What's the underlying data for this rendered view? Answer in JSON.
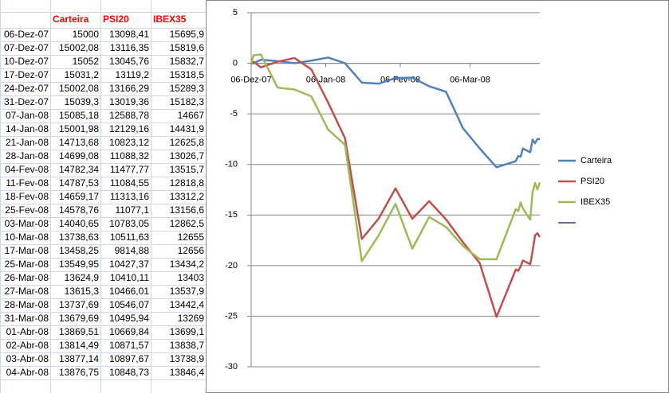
{
  "table": {
    "headers": [
      "Carteira",
      "PSI20",
      "IBEX35"
    ],
    "rows": [
      [
        "06-Dez-07",
        "15000",
        "13098,41",
        "15695,9"
      ],
      [
        "07-Dez-07",
        "15002,08",
        "13116,35",
        "15819,6"
      ],
      [
        "10-Dez-07",
        "15052",
        "13045,76",
        "15832,7"
      ],
      [
        "17-Dez-07",
        "15031,2",
        "13119,2",
        "15318,5"
      ],
      [
        "24-Dez-07",
        "15002,08",
        "13166,29",
        "15289,3"
      ],
      [
        "31-Dez-07",
        "15039,3",
        "13019,36",
        "15182,3"
      ],
      [
        "07-Jan-08",
        "15085,18",
        "12588,78",
        "14667"
      ],
      [
        "14-Jan-08",
        "15001,98",
        "12129,16",
        "14431,9"
      ],
      [
        "21-Jan-08",
        "14713,68",
        "10823,12",
        "12625,8"
      ],
      [
        "28-Jan-08",
        "14699,08",
        "11088,32",
        "13026,7"
      ],
      [
        "04-Fev-08",
        "14782,34",
        "11477,77",
        "13515,7"
      ],
      [
        "11-Fev-08",
        "14787,53",
        "11084,55",
        "12818,8"
      ],
      [
        "18-Fev-08",
        "14659,17",
        "11313,16",
        "13312,2"
      ],
      [
        "25-Fev-08",
        "14578,76",
        "11077,1",
        "13156,6"
      ],
      [
        "03-Mar-08",
        "14040,65",
        "10783,05",
        "12862,5"
      ],
      [
        "10-Mar-08",
        "13738,63",
        "10511,63",
        "12655"
      ],
      [
        "17-Mar-08",
        "13458,25",
        "9814,88",
        "12656"
      ],
      [
        "25-Mar-08",
        "13549,95",
        "10427,37",
        "13434,2"
      ],
      [
        "26-Mar-08",
        "13624,9",
        "10410,11",
        "13403"
      ],
      [
        "27-Mar-08",
        "13615,3",
        "10466,01",
        "13537,9"
      ],
      [
        "28-Mar-08",
        "13737,69",
        "10546,07",
        "13442,4"
      ],
      [
        "31-Mar-08",
        "13679,69",
        "10495,94",
        "13269"
      ],
      [
        "01-Abr-08",
        "13869,51",
        "10669,84",
        "13699,1"
      ],
      [
        "02-Abr-08",
        "13814,49",
        "10871,57",
        "13838,7"
      ],
      [
        "03-Abr-08",
        "13877,14",
        "10897,67",
        "13738,9"
      ],
      [
        "04-Abr-08",
        "13876,75",
        "10848,73",
        "13846,4"
      ]
    ]
  },
  "chart_data": {
    "type": "line",
    "x": [
      "06-Dez-07",
      "07-Dez-07",
      "10-Dez-07",
      "17-Dez-07",
      "24-Dez-07",
      "31-Dez-07",
      "07-Jan-08",
      "14-Jan-08",
      "21-Jan-08",
      "28-Jan-08",
      "04-Fev-08",
      "11-Fev-08",
      "18-Fev-08",
      "25-Fev-08",
      "03-Mar-08",
      "10-Mar-08",
      "17-Mar-08",
      "25-Mar-08",
      "26-Mar-08",
      "27-Mar-08",
      "28-Mar-08",
      "31-Mar-08",
      "01-Abr-08",
      "02-Abr-08",
      "03-Abr-08",
      "04-Abr-08"
    ],
    "xlim": [
      "06-Dez-07",
      "04-Abr-08"
    ],
    "xticks": [
      "06-Dez-07",
      "06-Jan-08",
      "06-Fev-08",
      "06-Mar-08"
    ],
    "ylim": [
      -30,
      5
    ],
    "yticks": [
      -30,
      -25,
      -20,
      -15,
      -10,
      -5,
      0,
      5
    ],
    "grid": true,
    "legend": "right",
    "series": [
      {
        "name": "Carteira",
        "color": "#4f81bd",
        "values": [
          0,
          0.01,
          0.35,
          0.21,
          0.01,
          0.26,
          0.57,
          0.01,
          -1.91,
          -2.01,
          -1.45,
          -1.42,
          -2.27,
          -2.81,
          -6.4,
          -8.41,
          -10.28,
          -9.67,
          -9.17,
          -9.23,
          -8.42,
          -8.8,
          -7.54,
          -7.9,
          -7.49,
          -7.49
        ]
      },
      {
        "name": "PSI20",
        "color": "#c0504d",
        "values": [
          0,
          0.14,
          -0.4,
          0.16,
          0.52,
          -0.6,
          -3.89,
          -7.4,
          -17.37,
          -15.35,
          -12.37,
          -15.37,
          -13.63,
          -15.43,
          -17.68,
          -19.75,
          -25.07,
          -20.39,
          -20.52,
          -20.1,
          -19.49,
          -19.87,
          -18.54,
          -17.0,
          -16.8,
          -17.18
        ]
      },
      {
        "name": "IBEX35",
        "color": "#9bbb59",
        "values": [
          0,
          0.79,
          0.87,
          -2.4,
          -2.59,
          -3.27,
          -6.56,
          -8.05,
          -19.56,
          -17.01,
          -13.89,
          -18.33,
          -15.19,
          -16.18,
          -18.05,
          -19.37,
          -19.37,
          -14.41,
          -14.61,
          -13.75,
          -14.36,
          -15.46,
          -12.72,
          -11.83,
          -12.47,
          -11.78
        ]
      }
    ]
  }
}
